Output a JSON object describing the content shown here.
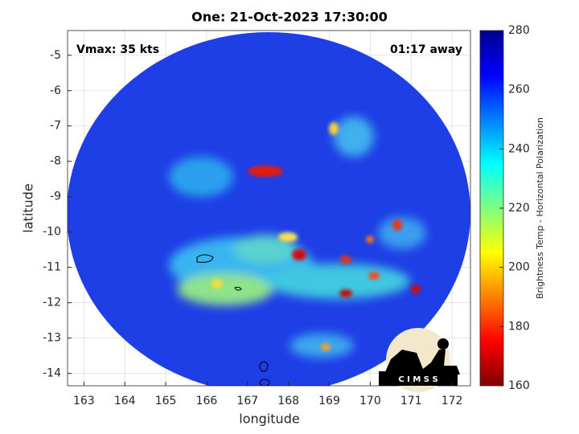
{
  "chart_data": {
    "type": "map",
    "title": "One: 21-Oct-2023 17:30:00",
    "annotations": [
      "Vmax: 35 kts",
      "01:17 away"
    ],
    "xlabel": "longitude",
    "ylabel": "latitude",
    "xlim": [
      162.6,
      172.45
    ],
    "xticks": [
      163,
      164,
      165,
      166,
      167,
      168,
      169,
      170,
      171,
      172
    ],
    "ylim": [
      -14.35,
      -4.3
    ],
    "yticks": [
      -5,
      -6,
      -7,
      -8,
      -9,
      -10,
      -11,
      -12,
      -13,
      -14
    ],
    "grid": true,
    "colorbar": {
      "label": "Brightness Temp - Horizontal Polarization",
      "lim": [
        160,
        280
      ],
      "ticks": [
        160,
        180,
        200,
        220,
        240,
        260,
        280
      ]
    },
    "logo": "C I M S S"
  }
}
